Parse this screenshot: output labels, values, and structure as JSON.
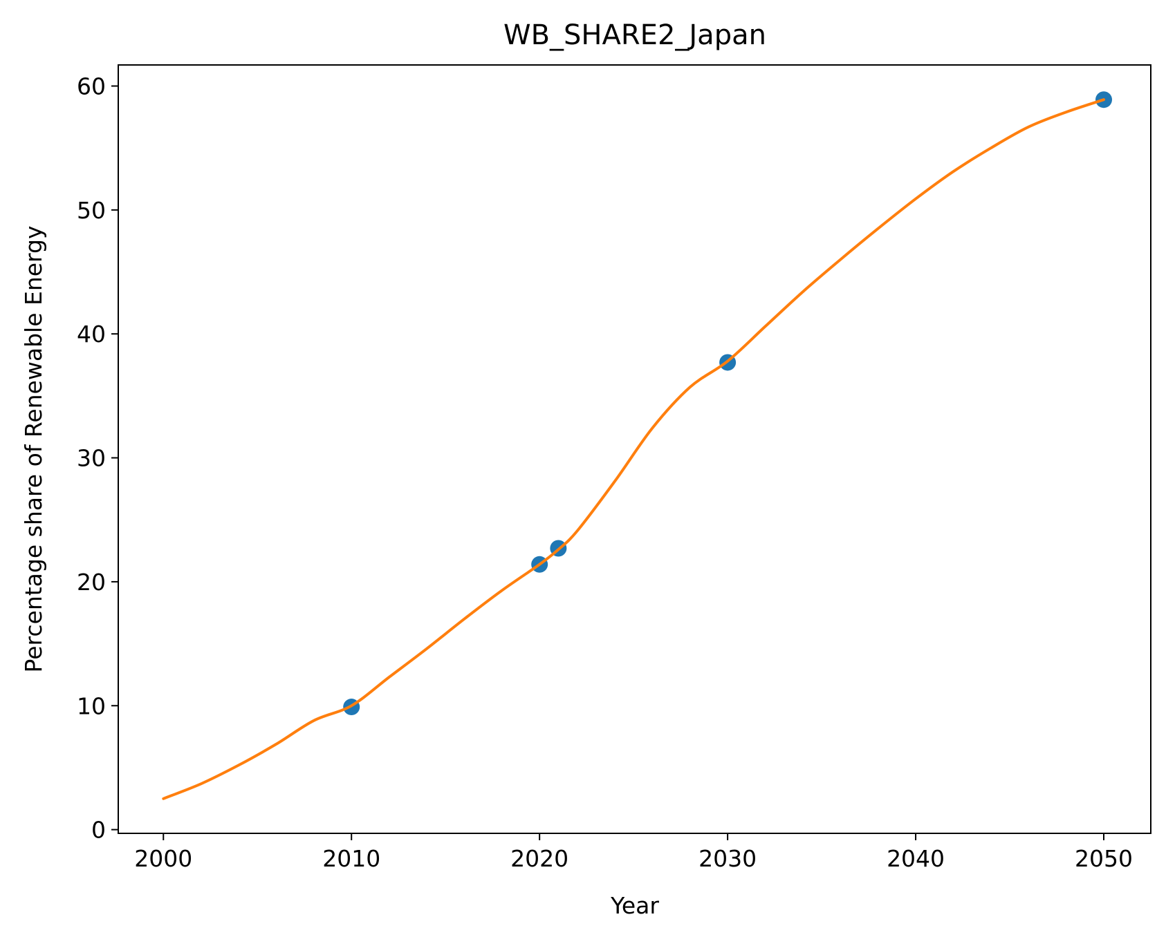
{
  "chart_data": {
    "type": "scatter",
    "title": "WB_SHARE2_Japan",
    "xlabel": "Year",
    "ylabel": "Percentage share of Renewable Energy",
    "xlim": [
      1997.6,
      2052.5
    ],
    "ylim": [
      -0.3,
      61.7
    ],
    "xticks": [
      2000,
      2010,
      2020,
      2030,
      2040,
      2050
    ],
    "yticks": [
      0,
      10,
      20,
      30,
      40,
      50,
      60
    ],
    "grid": false,
    "legend": "none",
    "series": [
      {
        "kind": "scatter",
        "color": "#1f77b4",
        "x": [
          2010,
          2020,
          2021,
          2030,
          2050
        ],
        "y": [
          9.9,
          21.4,
          22.7,
          37.7,
          58.9
        ]
      },
      {
        "kind": "line",
        "color": "#ff7f0e",
        "x": [
          2000,
          2002,
          2004,
          2006,
          2008,
          2010,
          2012,
          2014,
          2016,
          2018,
          2020,
          2021,
          2022,
          2024,
          2026,
          2028,
          2030,
          2032,
          2034,
          2036,
          2038,
          2040,
          2042,
          2044,
          2046,
          2048,
          2050
        ],
        "y": [
          2.5,
          3.7,
          5.2,
          6.9,
          8.8,
          10.0,
          12.3,
          14.6,
          17.0,
          19.3,
          21.4,
          22.6,
          24.1,
          28.1,
          32.4,
          35.7,
          37.8,
          40.6,
          43.4,
          46.0,
          48.5,
          50.9,
          53.1,
          55.0,
          56.7,
          57.9,
          58.9
        ]
      }
    ]
  }
}
